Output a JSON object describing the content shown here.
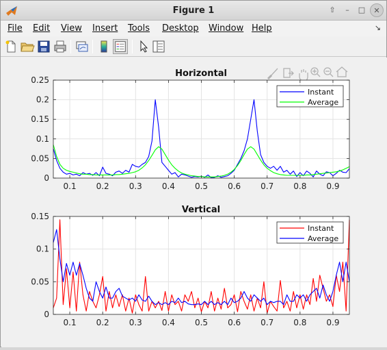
{
  "window": {
    "title": "Figure 1"
  },
  "menu": [
    "File",
    "Edit",
    "View",
    "Insert",
    "Tools",
    "Desktop",
    "Window",
    "Help"
  ],
  "toolbar": [
    "new-figure-icon",
    "open-file-icon",
    "save-icon",
    "print-icon",
    "link-plot-icon",
    "colorbar-icon",
    "legend-icon",
    "pointer-icon",
    "property-inspector-icon"
  ],
  "axes_toolbar": [
    "brush-icon",
    "export-icon",
    "pan-icon",
    "zoom-in-icon",
    "zoom-out-icon",
    "home-icon"
  ],
  "colors": {
    "blue": "#0000ff",
    "green": "#00ff00",
    "red": "#ff0000"
  },
  "chart_data": [
    {
      "type": "line",
      "title": "Horizontal",
      "xlim": [
        0.05,
        0.95
      ],
      "ylim": [
        0,
        0.25
      ],
      "xticks": [
        "0.1",
        "0.2",
        "0.3",
        "0.4",
        "0.5",
        "0.6",
        "0.7",
        "0.8",
        "0.9"
      ],
      "yticks": [
        "0",
        "0.05",
        "0.1",
        "0.15",
        "0.2",
        "0.25"
      ],
      "grid": true,
      "legend_position": "top-right",
      "series": [
        {
          "name": "Instant",
          "color": "#0000ff",
          "x": [
            0.05,
            0.06,
            0.07,
            0.08,
            0.09,
            0.1,
            0.11,
            0.12,
            0.13,
            0.14,
            0.15,
            0.16,
            0.17,
            0.18,
            0.19,
            0.2,
            0.21,
            0.22,
            0.23,
            0.24,
            0.25,
            0.26,
            0.27,
            0.28,
            0.29,
            0.3,
            0.31,
            0.32,
            0.33,
            0.34,
            0.35,
            0.36,
            0.37,
            0.38,
            0.39,
            0.4,
            0.41,
            0.42,
            0.43,
            0.44,
            0.45,
            0.46,
            0.47,
            0.48,
            0.49,
            0.5,
            0.51,
            0.52,
            0.53,
            0.54,
            0.55,
            0.56,
            0.57,
            0.58,
            0.59,
            0.6,
            0.61,
            0.62,
            0.63,
            0.64,
            0.65,
            0.66,
            0.67,
            0.68,
            0.69,
            0.7,
            0.71,
            0.72,
            0.73,
            0.74,
            0.75,
            0.76,
            0.77,
            0.78,
            0.79,
            0.8,
            0.81,
            0.82,
            0.83,
            0.84,
            0.85,
            0.86,
            0.87,
            0.88,
            0.89,
            0.9,
            0.91,
            0.92,
            0.93,
            0.94,
            0.95
          ],
          "y": [
            0.075,
            0.045,
            0.025,
            0.015,
            0.01,
            0.012,
            0.008,
            0.01,
            0.006,
            0.014,
            0.01,
            0.012,
            0.007,
            0.014,
            0.006,
            0.028,
            0.012,
            0.01,
            0.006,
            0.015,
            0.018,
            0.012,
            0.02,
            0.015,
            0.035,
            0.03,
            0.028,
            0.035,
            0.04,
            0.055,
            0.095,
            0.2,
            0.13,
            0.04,
            0.03,
            0.02,
            0.01,
            0.014,
            0.003,
            0.01,
            0.008,
            0.005,
            0.002,
            0.004,
            0.003,
            0.005,
            0.002,
            0.008,
            0.001,
            0.002,
            0.006,
            0.002,
            0.004,
            0.006,
            0.012,
            0.02,
            0.035,
            0.05,
            0.07,
            0.1,
            0.15,
            0.2,
            0.12,
            0.06,
            0.04,
            0.03,
            0.025,
            0.03,
            0.02,
            0.03,
            0.015,
            0.02,
            0.01,
            0.018,
            0.004,
            0.014,
            0.006,
            0.018,
            0.012,
            0.003,
            0.018,
            0.01,
            0.006,
            0.016,
            0.014,
            0.006,
            0.012,
            0.02,
            0.015,
            0.014,
            0.024
          ]
        },
        {
          "name": "Average",
          "color": "#00ff00",
          "x": [
            0.05,
            0.06,
            0.07,
            0.08,
            0.09,
            0.1,
            0.11,
            0.12,
            0.13,
            0.14,
            0.15,
            0.16,
            0.17,
            0.18,
            0.19,
            0.2,
            0.21,
            0.22,
            0.23,
            0.24,
            0.25,
            0.26,
            0.27,
            0.28,
            0.29,
            0.3,
            0.31,
            0.32,
            0.33,
            0.34,
            0.35,
            0.36,
            0.37,
            0.38,
            0.39,
            0.4,
            0.41,
            0.42,
            0.43,
            0.44,
            0.45,
            0.46,
            0.47,
            0.48,
            0.49,
            0.5,
            0.51,
            0.52,
            0.53,
            0.54,
            0.55,
            0.56,
            0.57,
            0.58,
            0.59,
            0.6,
            0.61,
            0.62,
            0.63,
            0.64,
            0.65,
            0.66,
            0.67,
            0.68,
            0.69,
            0.7,
            0.71,
            0.72,
            0.73,
            0.74,
            0.75,
            0.76,
            0.77,
            0.78,
            0.79,
            0.8,
            0.81,
            0.82,
            0.83,
            0.84,
            0.85,
            0.86,
            0.87,
            0.88,
            0.89,
            0.9,
            0.91,
            0.92,
            0.93,
            0.94,
            0.95
          ],
          "y": [
            0.085,
            0.055,
            0.035,
            0.025,
            0.02,
            0.017,
            0.015,
            0.013,
            0.011,
            0.01,
            0.01,
            0.009,
            0.009,
            0.008,
            0.008,
            0.008,
            0.008,
            0.008,
            0.008,
            0.009,
            0.009,
            0.01,
            0.011,
            0.012,
            0.014,
            0.016,
            0.02,
            0.026,
            0.034,
            0.045,
            0.058,
            0.072,
            0.08,
            0.074,
            0.06,
            0.046,
            0.034,
            0.025,
            0.018,
            0.013,
            0.01,
            0.008,
            0.006,
            0.005,
            0.004,
            0.004,
            0.003,
            0.003,
            0.003,
            0.003,
            0.004,
            0.005,
            0.007,
            0.01,
            0.015,
            0.022,
            0.032,
            0.045,
            0.06,
            0.074,
            0.08,
            0.074,
            0.06,
            0.046,
            0.034,
            0.025,
            0.019,
            0.014,
            0.011,
            0.009,
            0.008,
            0.007,
            0.007,
            0.007,
            0.007,
            0.007,
            0.007,
            0.008,
            0.008,
            0.009,
            0.01,
            0.011,
            0.012,
            0.013,
            0.014,
            0.015,
            0.016,
            0.018,
            0.021,
            0.025,
            0.029
          ]
        }
      ]
    },
    {
      "type": "line",
      "title": "Vertical",
      "xlim": [
        0.05,
        0.95
      ],
      "ylim": [
        0,
        0.15
      ],
      "xticks": [
        "0.1",
        "0.2",
        "0.3",
        "0.4",
        "0.5",
        "0.6",
        "0.7",
        "0.8",
        "0.9"
      ],
      "yticks": [
        "0",
        "0.05",
        "0.1",
        "0.15"
      ],
      "grid": true,
      "legend_position": "top-right",
      "series": [
        {
          "name": "Instant",
          "color": "#ff0000",
          "x": [
            0.05,
            0.06,
            0.07,
            0.08,
            0.09,
            0.1,
            0.11,
            0.12,
            0.13,
            0.14,
            0.15,
            0.16,
            0.17,
            0.18,
            0.19,
            0.2,
            0.21,
            0.22,
            0.23,
            0.24,
            0.25,
            0.26,
            0.27,
            0.28,
            0.29,
            0.3,
            0.31,
            0.32,
            0.33,
            0.34,
            0.35,
            0.36,
            0.37,
            0.38,
            0.39,
            0.4,
            0.41,
            0.42,
            0.43,
            0.44,
            0.45,
            0.46,
            0.47,
            0.48,
            0.49,
            0.5,
            0.51,
            0.52,
            0.53,
            0.54,
            0.55,
            0.56,
            0.57,
            0.58,
            0.59,
            0.6,
            0.61,
            0.62,
            0.63,
            0.64,
            0.65,
            0.66,
            0.67,
            0.68,
            0.69,
            0.7,
            0.71,
            0.72,
            0.73,
            0.74,
            0.75,
            0.76,
            0.77,
            0.78,
            0.79,
            0.8,
            0.81,
            0.82,
            0.83,
            0.84,
            0.85,
            0.86,
            0.87,
            0.88,
            0.89,
            0.9,
            0.91,
            0.92,
            0.93,
            0.94,
            0.95
          ],
          "y": [
            0.01,
            0.025,
            0.145,
            0.015,
            0.07,
            0.01,
            0.065,
            0.005,
            0.08,
            0.03,
            0.005,
            0.035,
            0.02,
            0.01,
            0.03,
            0.058,
            0.005,
            0.035,
            0.01,
            0.03,
            0.012,
            0.03,
            0.005,
            0.025,
            0.002,
            0.03,
            0.015,
            0.005,
            0.058,
            0.005,
            0.02,
            0.01,
            0.02,
            0.006,
            0.035,
            0.005,
            0.03,
            0.015,
            0.02,
            0.005,
            0.03,
            0.02,
            0.035,
            0.01,
            0.025,
            0.004,
            0.02,
            0.01,
            0.035,
            0.005,
            0.025,
            0.008,
            0.04,
            0.01,
            0.015,
            0.03,
            0.004,
            0.035,
            0.02,
            0.008,
            0.03,
            0.005,
            0.025,
            0.01,
            0.05,
            0.002,
            0.02,
            0.012,
            0.005,
            0.052,
            0.01,
            0.02,
            0.005,
            0.035,
            0.01,
            0.03,
            0.008,
            0.03,
            0.015,
            0.055,
            0.02,
            0.06,
            0.04,
            0.02,
            0.03,
            0.012,
            0.06,
            0.035,
            0.08,
            0.005,
            0.145
          ]
        },
        {
          "name": "Average",
          "color": "#0000ff",
          "x": [
            0.05,
            0.06,
            0.07,
            0.08,
            0.09,
            0.1,
            0.11,
            0.12,
            0.13,
            0.14,
            0.15,
            0.16,
            0.17,
            0.18,
            0.19,
            0.2,
            0.21,
            0.22,
            0.23,
            0.24,
            0.25,
            0.26,
            0.27,
            0.28,
            0.29,
            0.3,
            0.31,
            0.32,
            0.33,
            0.34,
            0.35,
            0.36,
            0.37,
            0.38,
            0.39,
            0.4,
            0.41,
            0.42,
            0.43,
            0.44,
            0.45,
            0.46,
            0.47,
            0.48,
            0.49,
            0.5,
            0.51,
            0.52,
            0.53,
            0.54,
            0.55,
            0.56,
            0.57,
            0.58,
            0.59,
            0.6,
            0.61,
            0.62,
            0.63,
            0.64,
            0.65,
            0.66,
            0.67,
            0.68,
            0.69,
            0.7,
            0.71,
            0.72,
            0.73,
            0.74,
            0.75,
            0.76,
            0.77,
            0.78,
            0.79,
            0.8,
            0.81,
            0.82,
            0.83,
            0.84,
            0.85,
            0.86,
            0.87,
            0.88,
            0.89,
            0.9,
            0.91,
            0.92,
            0.93,
            0.94,
            0.95
          ],
          "y": [
            0.11,
            0.13,
            0.085,
            0.05,
            0.078,
            0.06,
            0.08,
            0.06,
            0.078,
            0.06,
            0.04,
            0.025,
            0.02,
            0.05,
            0.035,
            0.025,
            0.042,
            0.025,
            0.025,
            0.035,
            0.04,
            0.028,
            0.025,
            0.022,
            0.025,
            0.02,
            0.03,
            0.022,
            0.02,
            0.028,
            0.02,
            0.015,
            0.018,
            0.015,
            0.018,
            0.015,
            0.02,
            0.018,
            0.025,
            0.018,
            0.02,
            0.016,
            0.015,
            0.015,
            0.016,
            0.015,
            0.02,
            0.015,
            0.02,
            0.015,
            0.018,
            0.015,
            0.02,
            0.015,
            0.025,
            0.018,
            0.02,
            0.025,
            0.035,
            0.025,
            0.02,
            0.03,
            0.025,
            0.02,
            0.025,
            0.015,
            0.02,
            0.018,
            0.02,
            0.02,
            0.015,
            0.03,
            0.02,
            0.02,
            0.03,
            0.025,
            0.03,
            0.02,
            0.03,
            0.035,
            0.04,
            0.025,
            0.045,
            0.03,
            0.02,
            0.035,
            0.06,
            0.08,
            0.05,
            0.08,
            0.05
          ]
        }
      ]
    }
  ]
}
